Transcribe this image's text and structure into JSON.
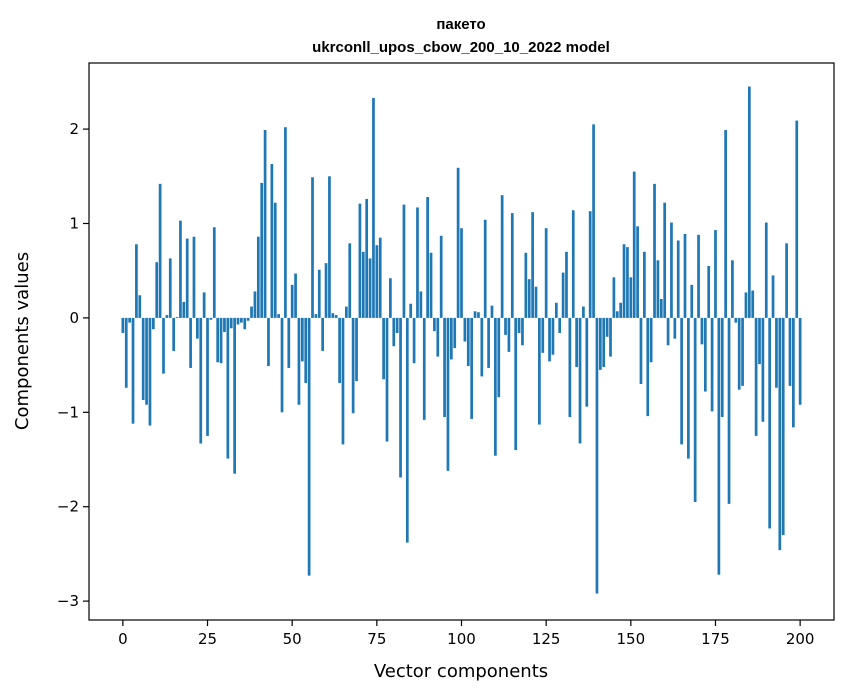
{
  "chart_data": {
    "type": "bar",
    "title_line1": "пакето",
    "title_line2": "ukrconll_upos_cbow_200_10_2022 model",
    "xlabel": "Vector components",
    "ylabel": "Components values",
    "xlim": [
      -10,
      210
    ],
    "ylim": [
      -3.2,
      2.7
    ],
    "xticks": [
      0,
      25,
      50,
      75,
      100,
      125,
      150,
      175,
      200
    ],
    "yticks": [
      -3,
      -2,
      -1,
      0,
      1,
      2
    ],
    "ytick_labels": [
      "−3",
      "−2",
      "−1",
      "0",
      "1",
      "2"
    ],
    "bar_color": "#1f77b4",
    "grid": false,
    "values": [
      -0.16,
      -0.74,
      -0.05,
      -1.12,
      0.78,
      0.24,
      -0.87,
      -0.92,
      -1.14,
      -0.12,
      0.59,
      1.42,
      -0.59,
      0.03,
      0.63,
      -0.35,
      0.01,
      1.03,
      0.17,
      0.84,
      -0.53,
      0.86,
      -0.22,
      -1.33,
      0.27,
      -1.25,
      -0.02,
      0.96,
      -0.47,
      -0.48,
      -0.15,
      -1.49,
      -0.11,
      -1.65,
      -0.07,
      -0.05,
      -0.12,
      -0.03,
      0.12,
      0.28,
      0.86,
      1.43,
      1.99,
      -0.51,
      1.63,
      1.22,
      0.04,
      -1.0,
      2.02,
      -0.53,
      0.35,
      0.47,
      -0.92,
      -0.46,
      -0.69,
      -2.73,
      1.49,
      0.04,
      0.51,
      -0.35,
      0.58,
      1.5,
      0.05,
      0.03,
      -0.69,
      -1.34,
      0.12,
      0.79,
      -1.01,
      -0.67,
      1.21,
      0.7,
      1.26,
      0.63,
      2.33,
      0.77,
      0.85,
      -0.65,
      -1.31,
      0.42,
      -0.3,
      -0.16,
      -1.69,
      1.2,
      -2.38,
      0.15,
      -0.48,
      1.17,
      0.28,
      -1.08,
      1.28,
      0.69,
      -0.14,
      -0.41,
      0.87,
      -1.05,
      -1.62,
      -0.44,
      -0.32,
      1.59,
      0.95,
      -0.25,
      -0.51,
      -1.07,
      0.07,
      0.06,
      -0.62,
      1.04,
      -0.53,
      0.13,
      -1.46,
      -0.84,
      1.3,
      -0.18,
      -0.36,
      1.11,
      -1.4,
      -0.16,
      -0.29,
      0.69,
      0.41,
      1.12,
      0.33,
      -1.13,
      -0.37,
      0.95,
      -0.46,
      -0.39,
      0.16,
      -0.16,
      0.48,
      0.7,
      -1.05,
      1.14,
      -0.52,
      -1.33,
      0.12,
      -0.94,
      1.13,
      2.05,
      -2.92,
      -0.55,
      -0.52,
      -0.2,
      -0.41,
      0.43,
      0.07,
      0.16,
      0.78,
      0.75,
      0.43,
      1.55,
      0.97,
      -0.7,
      0.7,
      -1.04,
      -0.47,
      1.42,
      0.61,
      0.2,
      1.22,
      -0.29,
      1.01,
      -0.22,
      0.82,
      -1.34,
      0.89,
      -1.49,
      0.35,
      -1.95,
      0.88,
      -0.28,
      -0.78,
      0.55,
      -0.99,
      0.93,
      -2.72,
      -1.05,
      1.99,
      -1.97,
      0.61,
      -0.05,
      -0.76,
      -0.72,
      0.27,
      2.45,
      0.29,
      -1.25,
      -0.49,
      -1.1,
      1.01,
      -2.23,
      0.45,
      -0.74,
      -2.46,
      -2.3,
      0.79,
      -0.72,
      -1.16,
      2.09,
      -0.92
    ]
  }
}
